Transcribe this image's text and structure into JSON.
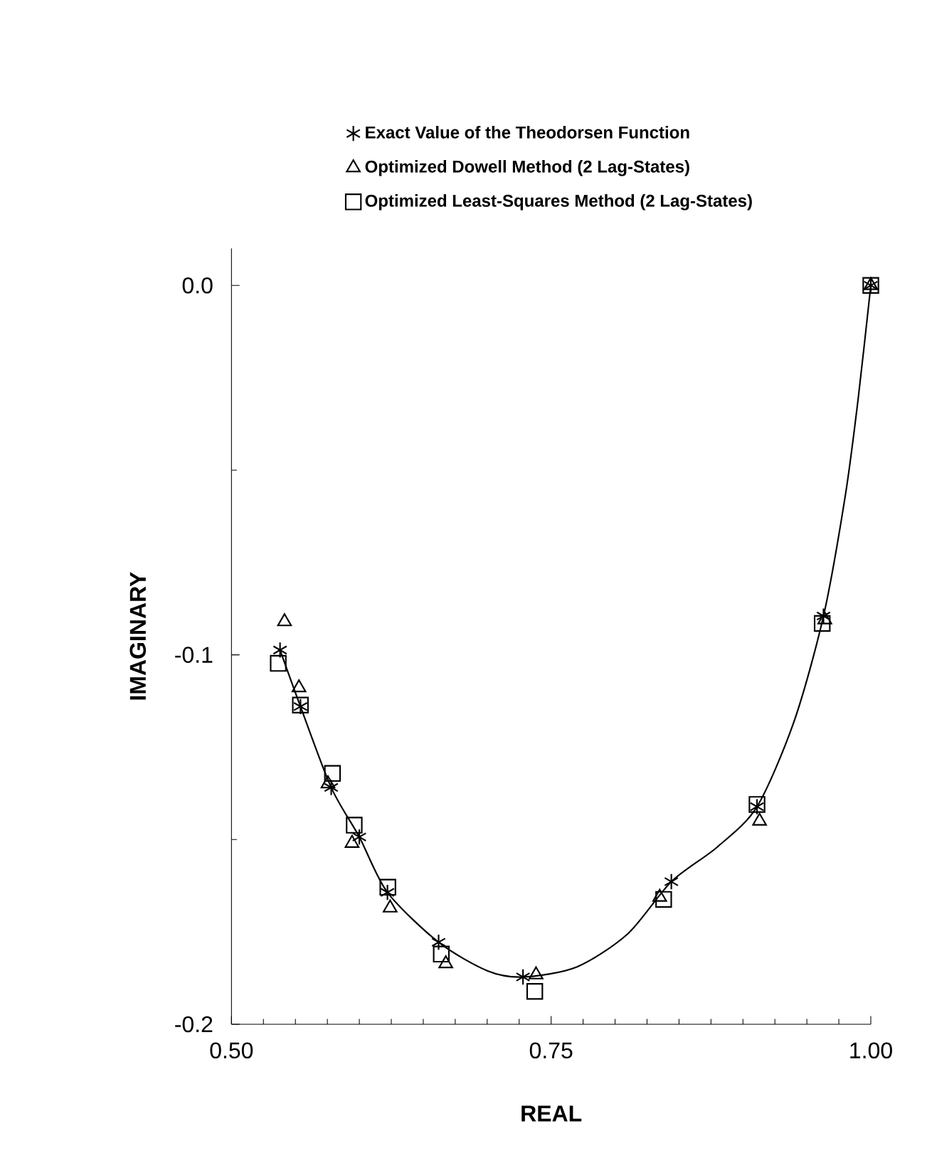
{
  "chart_data": {
    "type": "scatter",
    "xlabel": "REAL",
    "ylabel": "IMAGINARY",
    "xlim": [
      0.5,
      1.0
    ],
    "ylim": [
      -0.2,
      0.01
    ],
    "xticks": [
      {
        "value": 0.5,
        "label": "0.50"
      },
      {
        "value": 0.75,
        "label": "0.75"
      },
      {
        "value": 1.0,
        "label": "1.00"
      }
    ],
    "yticks": [
      {
        "value": 0.0,
        "label": "0.0"
      },
      {
        "value": -0.1,
        "label": "-0.1"
      },
      {
        "value": -0.2,
        "label": "-0.2"
      }
    ],
    "legend": "top",
    "grid": false,
    "series": [
      {
        "name": "Exact Value of the Theodorsen Function",
        "color": "#000000",
        "marker": "cross",
        "x": [
          0.538,
          0.554,
          0.578,
          0.6,
          0.622,
          0.662,
          0.728,
          0.844,
          0.911,
          0.963,
          1.0
        ],
        "values": [
          -0.0987,
          -0.114,
          -0.1359,
          -0.1493,
          -0.1643,
          -0.1778,
          -0.1872,
          -0.1614,
          -0.1411,
          -0.0895,
          0.0
        ]
      },
      {
        "name": "Optimized Dowell Method (2 Lag-States)",
        "color": "#000000",
        "marker": "triangle",
        "x": [
          0.5415,
          0.5528,
          0.5755,
          0.5943,
          0.6241,
          0.6676,
          0.7382,
          0.8349,
          0.913,
          0.964,
          1.0
        ],
        "values": [
          -0.091,
          -0.1089,
          -0.1349,
          -0.151,
          -0.1685,
          -0.1836,
          -0.1866,
          -0.1656,
          -0.145,
          -0.0905,
          0.0
        ]
      },
      {
        "name": "Optimized Least-Squares Method (2 Lag-States)",
        "color": "#000000",
        "marker": "square",
        "x": [
          0.5366,
          0.5539,
          0.579,
          0.596,
          0.6223,
          0.6641,
          0.7372,
          0.838,
          0.911,
          0.962,
          1.0
        ],
        "values": [
          -0.1023,
          -0.1136,
          -0.1321,
          -0.1461,
          -0.1629,
          -0.181,
          -0.1911,
          -0.1662,
          -0.1405,
          -0.0915,
          0.0
        ]
      },
      {
        "type": "line",
        "color": "#000000",
        "marker": "none",
        "x": [
          0.538,
          0.554,
          0.578,
          0.6,
          0.622,
          0.662,
          0.7,
          0.728,
          0.77,
          0.81,
          0.844,
          0.88,
          0.911,
          0.94,
          0.963,
          0.98,
          0.99,
          1.0
        ],
        "values": [
          -0.0987,
          -0.114,
          -0.1359,
          -0.1493,
          -0.1643,
          -0.1778,
          -0.1855,
          -0.1872,
          -0.1845,
          -0.1755,
          -0.1614,
          -0.152,
          -0.1411,
          -0.118,
          -0.0895,
          -0.057,
          -0.031,
          0.0
        ]
      }
    ]
  }
}
